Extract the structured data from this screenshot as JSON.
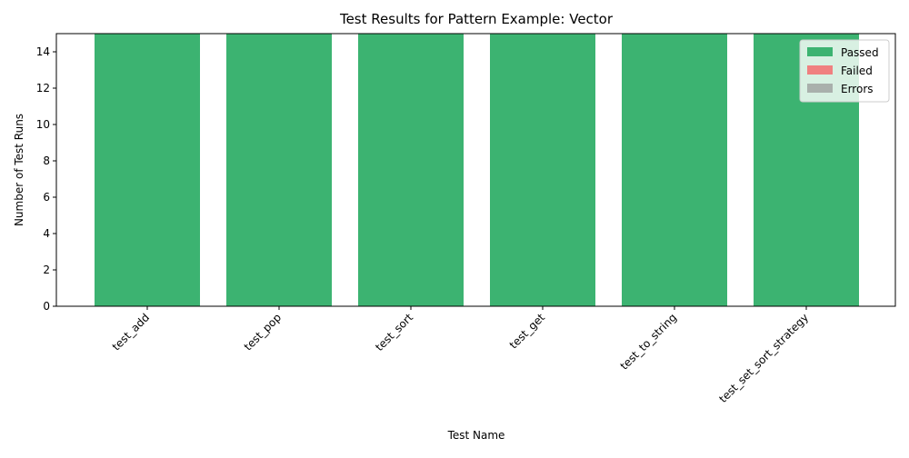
{
  "chart_data": {
    "type": "bar",
    "stacked": true,
    "title": "Test Results for Pattern Example: Vector",
    "xlabel": "Test Name",
    "ylabel": "Number of Test Runs",
    "ylim": [
      0,
      15
    ],
    "yticks": [
      0,
      2,
      4,
      6,
      8,
      10,
      12,
      14
    ],
    "grid": false,
    "legend_position": "top-right",
    "categories": [
      "test_add",
      "test_pop",
      "test_sort",
      "test_get",
      "test_to_string",
      "test_set_sort_strategy"
    ],
    "series": [
      {
        "name": "Passed",
        "color": "#3cb371",
        "values": [
          15,
          15,
          15,
          15,
          15,
          15
        ]
      },
      {
        "name": "Failed",
        "color": "#f08080",
        "values": [
          0,
          0,
          0,
          0,
          0,
          0
        ]
      },
      {
        "name": "Errors",
        "color": "#a9b0ac",
        "values": [
          0,
          0,
          0,
          0,
          0,
          0
        ]
      }
    ]
  }
}
